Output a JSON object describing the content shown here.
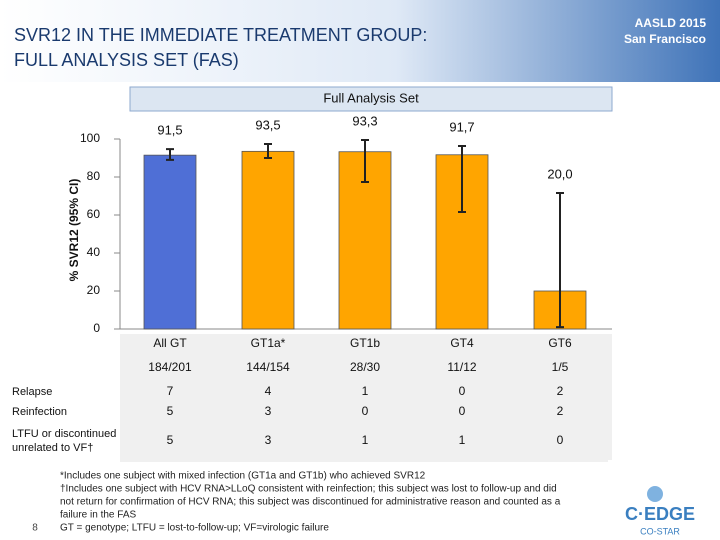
{
  "header": {
    "title_lines": [
      "SVR12 IN THE IMMEDIATE TREATMENT GROUP:",
      "FULL ANALYSIS SET (FAS)"
    ],
    "conference_lines": [
      "AASLD 2015",
      "San Francisco"
    ]
  },
  "chart_data": {
    "type": "bar",
    "legend_label": "Full Analysis Set",
    "y_label": "% SVR12 (95% CI)",
    "categories": [
      "All GT",
      "GT1a*",
      "GT1b",
      "GT4",
      "GT6"
    ],
    "values": [
      91.5,
      93.5,
      93.3,
      91.7,
      20.0
    ],
    "value_labels": [
      "91,5",
      "93,5",
      "93,3",
      "91,7",
      "20,0"
    ],
    "ci_low": [
      89,
      90,
      77.4,
      61.6,
      1
    ],
    "ci_high": [
      94.7,
      97.4,
      99.5,
      96.3,
      71.6
    ],
    "colors": [
      "#4f6fd6",
      "#ffa500",
      "#ffa500",
      "#ffa500",
      "#ffa500"
    ],
    "ylim": [
      0,
      100
    ],
    "yticks": [
      0,
      20,
      40,
      60,
      80,
      100
    ]
  },
  "table": {
    "n_row": [
      "184/201",
      "144/154",
      "28/30",
      "11/12",
      "1/5"
    ],
    "rows": [
      {
        "label_lines": [
          "Relapse"
        ],
        "values": [
          7,
          4,
          1,
          0,
          2
        ]
      },
      {
        "label_lines": [
          "Reinfection"
        ],
        "values": [
          5,
          3,
          0,
          0,
          2
        ]
      },
      {
        "label_lines": [
          "LTFU or discontinued",
          "unrelated to VF†"
        ],
        "values": [
          5,
          3,
          1,
          1,
          0
        ]
      }
    ]
  },
  "footnotes": [
    "*Includes one subject with mixed infection (GT1a and GT1b) who achieved SVR12",
    "†Includes one subject with HCV RNA>LLoQ  consistent with reinfection; this subject was lost to follow-up and did",
    "not return for confirmation of HCV RNA; this subject was discontinued for administrative reason and counted as a",
    "failure in the FAS",
    "GT = genotype; LTFU = lost-to-follow-up; VF=virologic failure"
  ],
  "slide_number": "8",
  "logo": {
    "main": "C·EDGE",
    "sub": "CO-STAR"
  }
}
